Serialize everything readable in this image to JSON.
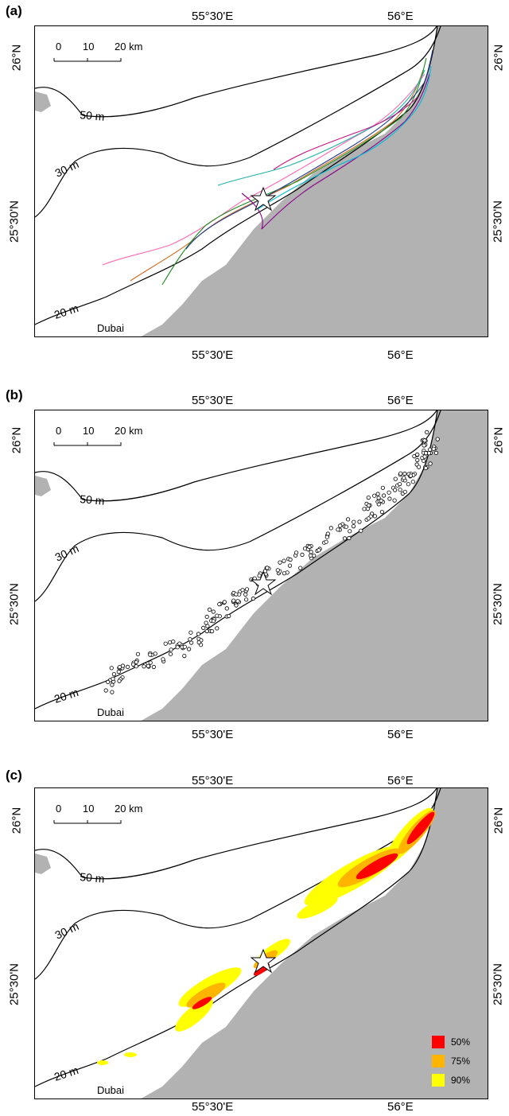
{
  "panels": [
    {
      "letter": "(a)",
      "type": "tracks"
    },
    {
      "letter": "(b)",
      "type": "points"
    },
    {
      "letter": "(c)",
      "type": "density"
    }
  ],
  "axes": {
    "lon_labels": [
      "55°30'E",
      "56°E"
    ],
    "lat_labels": [
      "26°N",
      "25°30'N"
    ]
  },
  "scale_bar": {
    "ticks": [
      "0",
      "10",
      "20 km"
    ]
  },
  "contours": {
    "c50": "50 m",
    "c30": "30 m",
    "c20": "20 m"
  },
  "place_label": "Dubai",
  "colors": {
    "land": "#b2b2b2",
    "p50": "#ff0000",
    "p75": "#ffb400",
    "p90": "#ffff00"
  },
  "legend": [
    {
      "label": "50%",
      "color": "#ff0000"
    },
    {
      "label": "75%",
      "color": "#ffb400"
    },
    {
      "label": "90%",
      "color": "#ffff00"
    }
  ]
}
